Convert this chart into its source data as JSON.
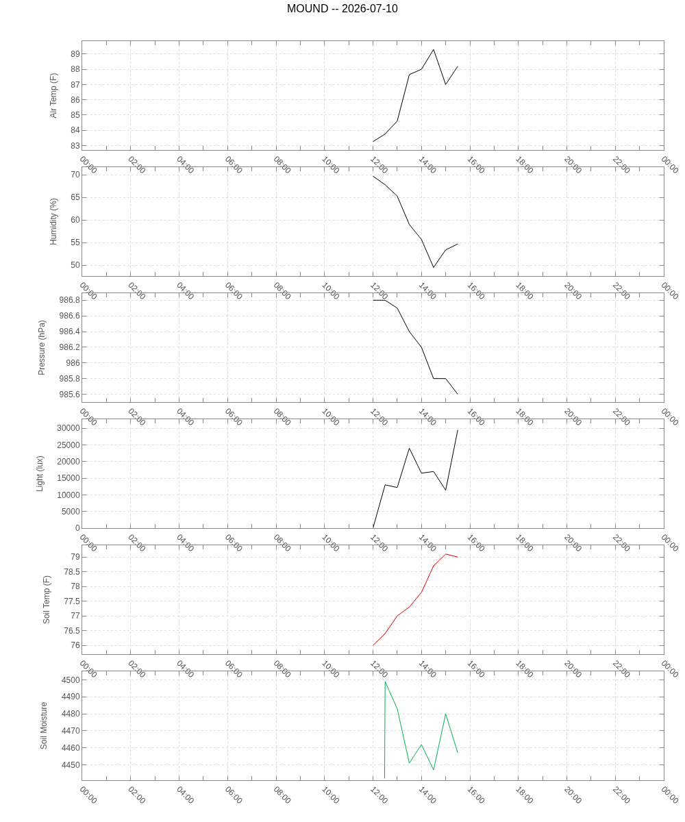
{
  "chart_data": [
    {
      "type": "line",
      "title": "MOUND -- 2026-07-10",
      "ylabel": "Air Temp (F)",
      "color": "#000000",
      "grid": true,
      "x": [
        12,
        12.5,
        13,
        13.5,
        14,
        14.5,
        15,
        15.5
      ],
      "values": [
        83.25,
        83.75,
        84.6,
        87.65,
        88.0,
        89.3,
        87.0,
        88.2
      ],
      "xlim": [
        0,
        24
      ],
      "xticks": [
        {
          "value": 0,
          "label": "00:00"
        },
        {
          "value": 2,
          "label": "02:00"
        },
        {
          "value": 4,
          "label": "04:00"
        },
        {
          "value": 6,
          "label": "06:00"
        },
        {
          "value": 8,
          "label": "08:00"
        },
        {
          "value": 10,
          "label": "10:00"
        },
        {
          "value": 12,
          "label": "12:00"
        },
        {
          "value": 14,
          "label": "14:00"
        },
        {
          "value": 16,
          "label": "16:00"
        },
        {
          "value": 18,
          "label": "18:00"
        },
        {
          "value": 20,
          "label": "20:00"
        },
        {
          "value": 22,
          "label": "22:00"
        },
        {
          "value": 24,
          "label": "00:00"
        }
      ],
      "ylim": [
        82.7,
        89.85
      ],
      "yticks": [
        83,
        84,
        85,
        86,
        87,
        88,
        89
      ]
    },
    {
      "type": "line",
      "ylabel": "Humidity (%)",
      "color": "#000000",
      "grid": true,
      "x": [
        12,
        12.5,
        13,
        13.5,
        14,
        14.5,
        15,
        15.5
      ],
      "values": [
        69.7,
        67.8,
        65.3,
        59,
        55.7,
        49.5,
        53.4,
        54.7
      ],
      "xlim": [
        0,
        24
      ],
      "xticks": [
        {
          "value": 0,
          "label": "00:00"
        },
        {
          "value": 2,
          "label": "02:00"
        },
        {
          "value": 4,
          "label": "04:00"
        },
        {
          "value": 6,
          "label": "06:00"
        },
        {
          "value": 8,
          "label": "08:00"
        },
        {
          "value": 10,
          "label": "10:00"
        },
        {
          "value": 12,
          "label": "12:00"
        },
        {
          "value": 14,
          "label": "14:00"
        },
        {
          "value": 16,
          "label": "16:00"
        },
        {
          "value": 18,
          "label": "18:00"
        },
        {
          "value": 20,
          "label": "20:00"
        },
        {
          "value": 22,
          "label": "22:00"
        },
        {
          "value": 24,
          "label": "00:00"
        }
      ],
      "ylim": [
        47.6,
        71.7
      ],
      "yticks": [
        50,
        55,
        60,
        65,
        70
      ]
    },
    {
      "type": "line",
      "ylabel": "Pressure (hPa)",
      "color": "#000000",
      "grid": true,
      "x": [
        12,
        12.5,
        13,
        13.5,
        14,
        14.5,
        15,
        15.5
      ],
      "values": [
        986.8,
        986.8,
        986.7,
        986.4,
        986.2,
        985.8,
        985.8,
        985.6
      ],
      "xlim": [
        0,
        24
      ],
      "xticks": [
        {
          "value": 0,
          "label": "00:00"
        },
        {
          "value": 2,
          "label": "02:00"
        },
        {
          "value": 4,
          "label": "04:00"
        },
        {
          "value": 6,
          "label": "06:00"
        },
        {
          "value": 8,
          "label": "08:00"
        },
        {
          "value": 10,
          "label": "10:00"
        },
        {
          "value": 12,
          "label": "12:00"
        },
        {
          "value": 14,
          "label": "14:00"
        },
        {
          "value": 16,
          "label": "16:00"
        },
        {
          "value": 18,
          "label": "18:00"
        },
        {
          "value": 20,
          "label": "20:00"
        },
        {
          "value": 22,
          "label": "22:00"
        },
        {
          "value": 24,
          "label": "00:00"
        }
      ],
      "ylim": [
        985.5,
        986.89
      ],
      "yticks": [
        985.6,
        985.8,
        986,
        986.2,
        986.4,
        986.6,
        986.8
      ]
    },
    {
      "type": "line",
      "ylabel": "Light (lux)",
      "color": "#000000",
      "grid": true,
      "x": [
        12,
        12.5,
        13,
        13.5,
        14,
        14.5,
        15,
        15.5
      ],
      "values": [
        0,
        13000,
        12200,
        24000,
        16500,
        17000,
        11400,
        29500
      ],
      "xlim": [
        0,
        24
      ],
      "xticks": [
        {
          "value": 0,
          "label": "00:00"
        },
        {
          "value": 2,
          "label": "02:00"
        },
        {
          "value": 4,
          "label": "04:00"
        },
        {
          "value": 6,
          "label": "06:00"
        },
        {
          "value": 8,
          "label": "08:00"
        },
        {
          "value": 10,
          "label": "10:00"
        },
        {
          "value": 12,
          "label": "12:00"
        },
        {
          "value": 14,
          "label": "14:00"
        },
        {
          "value": 16,
          "label": "16:00"
        },
        {
          "value": 18,
          "label": "18:00"
        },
        {
          "value": 20,
          "label": "20:00"
        },
        {
          "value": 22,
          "label": "22:00"
        },
        {
          "value": 24,
          "label": "00:00"
        }
      ],
      "ylim": [
        0,
        32700
      ],
      "yticks": [
        0,
        5000,
        10000,
        15000,
        20000,
        25000,
        30000
      ]
    },
    {
      "type": "line",
      "ylabel": "Soil Temp (F)",
      "color": "#dd0000",
      "grid": true,
      "x": [
        12,
        12.5,
        13,
        13.5,
        14,
        14.5,
        15,
        15.5
      ],
      "values": [
        76.0,
        76.4,
        77.0,
        77.3,
        77.8,
        78.7,
        79.1,
        79.0
      ],
      "xlim": [
        0,
        24
      ],
      "xticks": [
        {
          "value": 0,
          "label": "00:00"
        },
        {
          "value": 2,
          "label": "02:00"
        },
        {
          "value": 4,
          "label": "04:00"
        },
        {
          "value": 6,
          "label": "06:00"
        },
        {
          "value": 8,
          "label": "08:00"
        },
        {
          "value": 10,
          "label": "10:00"
        },
        {
          "value": 12,
          "label": "12:00"
        },
        {
          "value": 14,
          "label": "14:00"
        },
        {
          "value": 16,
          "label": "16:00"
        },
        {
          "value": 18,
          "label": "18:00"
        },
        {
          "value": 20,
          "label": "20:00"
        },
        {
          "value": 22,
          "label": "22:00"
        },
        {
          "value": 24,
          "label": "00:00"
        }
      ],
      "ylim": [
        75.7,
        79.4
      ],
      "yticks": [
        76,
        76.5,
        77,
        77.5,
        78,
        78.5,
        79
      ]
    },
    {
      "type": "line",
      "ylabel": "Soil Moisture",
      "color": "#00b050",
      "grid": true,
      "x": [
        12.48,
        12.5,
        13,
        13.5,
        14,
        14.5,
        15,
        15.5
      ],
      "values": [
        4442,
        4499,
        4483,
        4451,
        4462,
        4447,
        4480,
        4457
      ],
      "xlim": [
        0,
        24
      ],
      "xticks": [
        {
          "value": 0,
          "label": "00:00"
        },
        {
          "value": 2,
          "label": "02:00"
        },
        {
          "value": 4,
          "label": "04:00"
        },
        {
          "value": 6,
          "label": "06:00"
        },
        {
          "value": 8,
          "label": "08:00"
        },
        {
          "value": 10,
          "label": "10:00"
        },
        {
          "value": 12,
          "label": "12:00"
        },
        {
          "value": 14,
          "label": "14:00"
        },
        {
          "value": 16,
          "label": "16:00"
        },
        {
          "value": 18,
          "label": "18:00"
        },
        {
          "value": 20,
          "label": "20:00"
        },
        {
          "value": 22,
          "label": "22:00"
        },
        {
          "value": 24,
          "label": "00:00"
        }
      ],
      "ylim": [
        4441,
        4505
      ],
      "yticks": [
        4450,
        4460,
        4470,
        4480,
        4490,
        4500
      ]
    }
  ]
}
